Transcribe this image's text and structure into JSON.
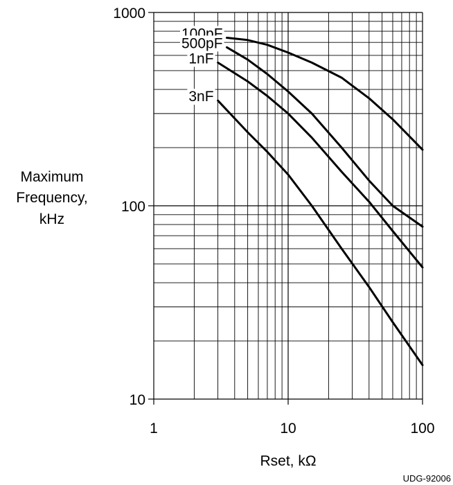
{
  "chart_data": {
    "type": "line",
    "title": "",
    "xlabel": "Rset, kΩ",
    "ylabel_lines": [
      "Maximum",
      "Frequency,",
      "kHz"
    ],
    "x_scale": "log",
    "y_scale": "log",
    "xlim": [
      1,
      100
    ],
    "ylim": [
      10,
      1000
    ],
    "x_ticks": [
      1,
      10,
      100
    ],
    "x_tick_labels": [
      "1",
      "10",
      "100"
    ],
    "y_ticks": [
      10,
      100,
      1000
    ],
    "y_tick_labels": [
      "10",
      "100",
      "1000"
    ],
    "grid": true,
    "legend": "inline labels near curve starts",
    "series": [
      {
        "name": "100pF",
        "x": [
          3.5,
          5,
          7,
          10,
          15,
          25,
          40,
          60,
          100
        ],
        "y": [
          740,
          720,
          680,
          620,
          550,
          460,
          360,
          280,
          195
        ]
      },
      {
        "name": "500pF",
        "x": [
          3.5,
          5,
          7,
          10,
          15,
          25,
          40,
          60,
          100
        ],
        "y": [
          660,
          570,
          480,
          390,
          300,
          200,
          135,
          100,
          78
        ]
      },
      {
        "name": "1nF",
        "x": [
          3,
          5,
          7,
          10,
          15,
          25,
          40,
          60,
          100
        ],
        "y": [
          550,
          440,
          370,
          300,
          225,
          150,
          105,
          74,
          48
        ]
      },
      {
        "name": "3nF",
        "x": [
          3,
          5,
          7,
          10,
          15,
          25,
          40,
          60,
          100
        ],
        "y": [
          350,
          240,
          190,
          145,
          100,
          60,
          38,
          25,
          15
        ]
      }
    ]
  },
  "figure_code": "UDG-92006",
  "colors": {
    "line": "#000000",
    "grid": "#000000",
    "background": "#ffffff"
  }
}
